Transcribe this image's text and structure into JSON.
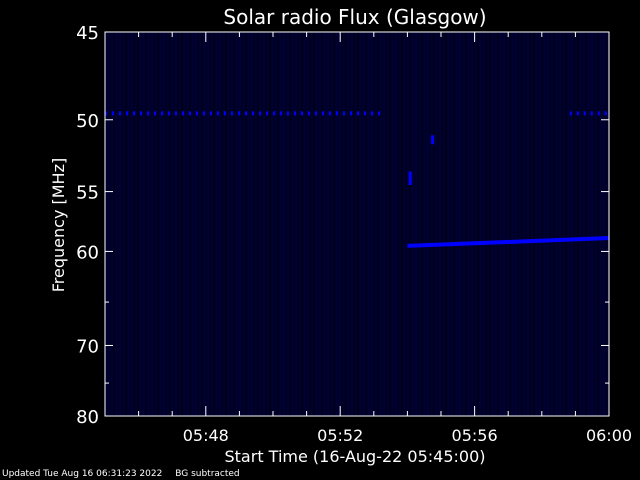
{
  "chart_data": {
    "type": "heatmap",
    "title": "Solar radio Flux (Glasgow)",
    "xlabel": "Start Time (16-Aug-22 05:45:00)",
    "ylabel": "Frequency [MHz]",
    "x_start": "05:45:00",
    "x_end": "06:00:00",
    "x_ticks": [
      "05:48",
      "05:52",
      "05:56",
      "06:00"
    ],
    "y_ticks": [
      "45",
      "50",
      "55",
      "60",
      "70",
      "80"
    ],
    "ylim": [
      45,
      80
    ],
    "y_axis_scale": "reciprocal",
    "colormap": [
      "#000000",
      "#000033",
      "#0000ff"
    ],
    "background_color": "#000000",
    "emission_features": [
      {
        "name": "interference line",
        "time_start": "05:45:00",
        "time_end": "05:53:20",
        "freq_mhz": 49.6,
        "style": "dashed"
      },
      {
        "name": "interference line",
        "time_start": "05:58:50",
        "time_end": "06:00:00",
        "freq_mhz": 49.6,
        "style": "dashed"
      },
      {
        "name": "emission band",
        "time_start": "05:54:00",
        "time_end": "06:00:00",
        "freq_start_mhz": 59.5,
        "freq_end_mhz": 58.8,
        "style": "solid"
      },
      {
        "name": "spike",
        "time": "05:54:05",
        "freq_start_mhz": 53.5,
        "freq_end_mhz": 54.5,
        "style": "solid"
      },
      {
        "name": "spike",
        "time": "05:54:45",
        "freq_start_mhz": 51.0,
        "freq_end_mhz": 51.6,
        "style": "solid"
      }
    ]
  },
  "footer": {
    "updated": "Updated Tue Aug 16 06:31:23 2022",
    "note": "BG subtracted"
  }
}
